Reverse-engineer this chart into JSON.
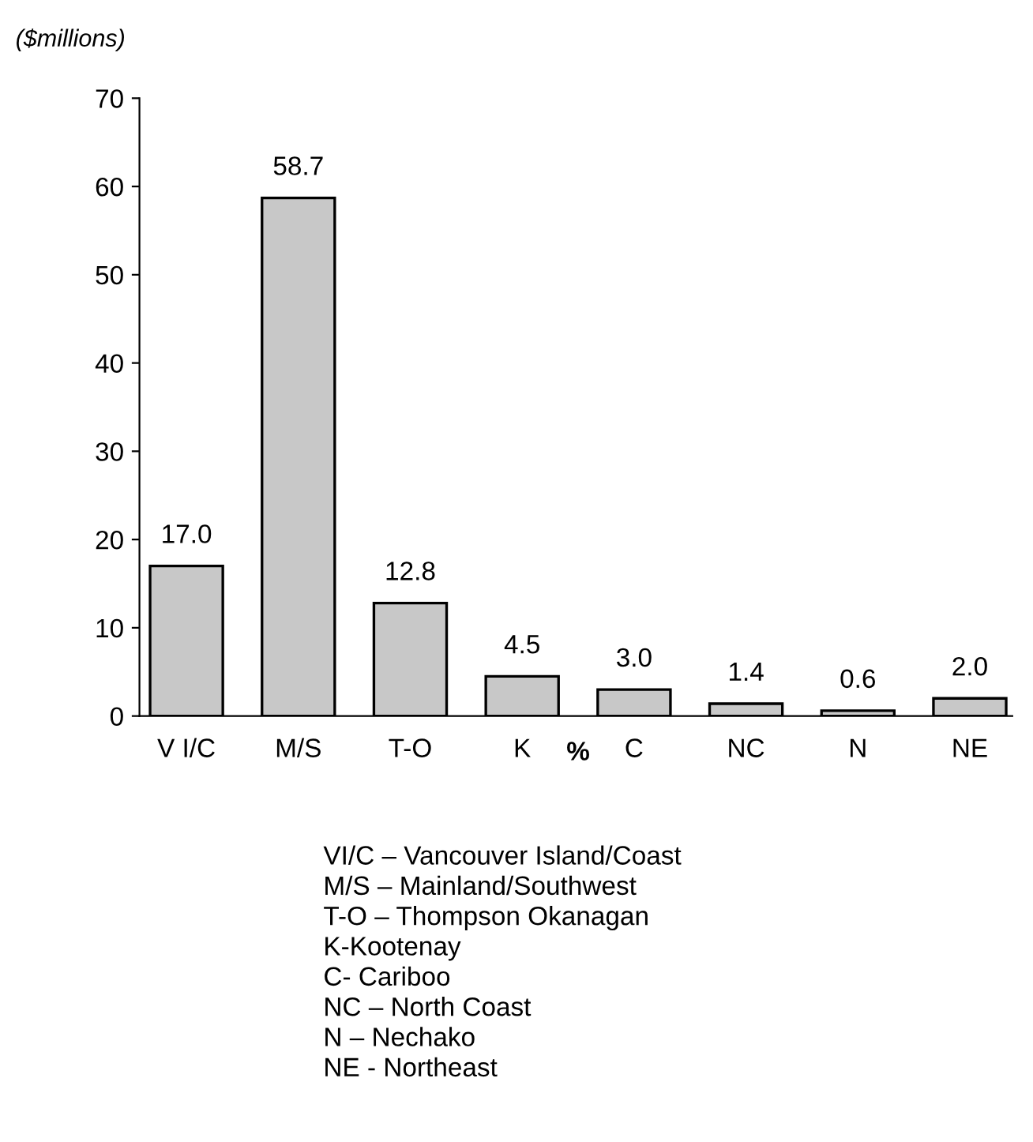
{
  "chart_data": {
    "type": "bar",
    "ylabel": "($millions)",
    "categories": [
      "V I/C",
      "M/S",
      "T-O",
      "K",
      "C",
      "NC",
      "N",
      "NE"
    ],
    "values": [
      17.0,
      58.7,
      12.8,
      4.5,
      3.0,
      1.4,
      0.6,
      2.0
    ],
    "value_labels": [
      "17.0",
      "58.7",
      "12.8",
      "4.5",
      "3.0",
      "1.4",
      "0.6",
      "2.0"
    ],
    "color": "#c8c8c8",
    "ylim": [
      0,
      70
    ],
    "yticks": [
      0,
      10,
      20,
      30,
      40,
      50,
      60,
      70
    ],
    "grid": false,
    "legend": false,
    "annotations": [
      "%",
      "VI/C – Vancouver Island/Coast",
      "M/S – Mainland/Southwest",
      "T-O – Thompson Okanagan",
      "K-Kootenay",
      "C- Cariboo",
      "NC – North Coast",
      "N – Nechako",
      "NE - Northeast"
    ]
  }
}
